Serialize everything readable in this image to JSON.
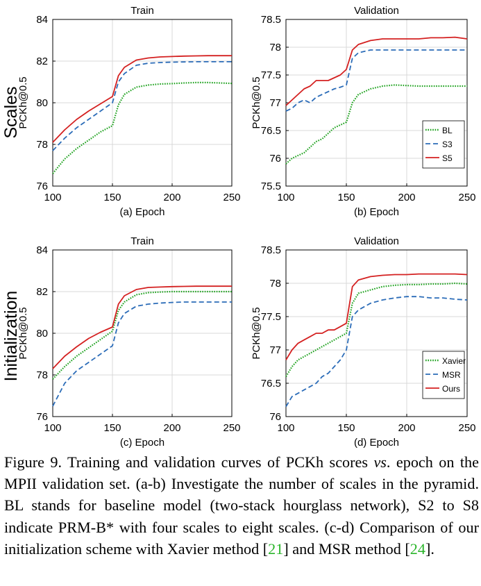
{
  "row_labels": [
    "Scales",
    "Initialization"
  ],
  "caption": {
    "figure_label": "Figure 9.",
    "text_a": " Training and validation curves of PCKh scores ",
    "vs": "vs",
    "text_b": ". epoch on the MPII validation set. (a-b) Investigate the number of scales in the pyramid. BL stands for baseline model (two-stack hourglass network), S2 to S8 indicate PRM-B* with four scales to eight scales. (c-d) Comparison of our initialization scheme with Xavier method [",
    "ref_1": "21",
    "text_c": "] and MSR method [",
    "ref_2": "24",
    "text_d": "]."
  },
  "colors": {
    "green": "#1fa21f",
    "blue": "#2b6cb8",
    "red": "#d42020",
    "ref_link": "#2ab52a"
  },
  "chart_data": [
    {
      "id": "a",
      "type": "line",
      "title": "Train",
      "xlabel": "(a) Epoch",
      "ylabel": "PCKh@0.5",
      "xlim": [
        100,
        250
      ],
      "ylim": [
        76,
        84
      ],
      "xticks": [
        100,
        150,
        200,
        250
      ],
      "yticks": [
        76,
        78,
        80,
        82,
        84
      ],
      "legend": null,
      "series": [
        {
          "name": "BL",
          "style": "dotted",
          "color": "#1fa21f",
          "x": [
            100,
            110,
            120,
            130,
            140,
            150,
            155,
            160,
            170,
            180,
            190,
            200,
            210,
            220,
            230,
            240,
            250
          ],
          "y": [
            76.6,
            77.3,
            77.8,
            78.2,
            78.6,
            78.9,
            79.9,
            80.4,
            80.75,
            80.85,
            80.9,
            80.92,
            80.95,
            80.97,
            80.97,
            80.95,
            80.93
          ]
        },
        {
          "name": "S3",
          "style": "dashed",
          "color": "#2b6cb8",
          "x": [
            100,
            110,
            120,
            130,
            140,
            150,
            155,
            160,
            170,
            180,
            190,
            200,
            210,
            220,
            230,
            240,
            250
          ],
          "y": [
            77.7,
            78.3,
            78.8,
            79.2,
            79.6,
            80.0,
            81.0,
            81.4,
            81.8,
            81.9,
            81.93,
            81.95,
            81.96,
            81.97,
            81.97,
            81.97,
            81.97
          ]
        },
        {
          "name": "S5",
          "style": "solid",
          "color": "#d42020",
          "x": [
            100,
            110,
            120,
            130,
            140,
            150,
            155,
            160,
            170,
            180,
            190,
            200,
            210,
            220,
            230,
            240,
            250
          ],
          "y": [
            78.1,
            78.7,
            79.2,
            79.6,
            79.95,
            80.3,
            81.3,
            81.7,
            82.05,
            82.15,
            82.2,
            82.22,
            82.24,
            82.25,
            82.26,
            82.26,
            82.26
          ]
        }
      ]
    },
    {
      "id": "b",
      "type": "line",
      "title": "Validation",
      "xlabel": "(b) Epoch",
      "ylabel": "PCKh@0.5",
      "xlim": [
        100,
        250
      ],
      "ylim": [
        75.5,
        78.5
      ],
      "xticks": [
        100,
        150,
        200,
        250
      ],
      "yticks": [
        75.5,
        76,
        76.5,
        77,
        77.5,
        78,
        78.5
      ],
      "legend": {
        "position": "lower-right",
        "entries": [
          "BL",
          "S3",
          "S5"
        ]
      },
      "series": [
        {
          "name": "BL",
          "style": "dotted",
          "color": "#1fa21f",
          "x": [
            100,
            105,
            110,
            115,
            120,
            125,
            130,
            135,
            140,
            145,
            150,
            155,
            160,
            170,
            180,
            190,
            200,
            210,
            220,
            230,
            240,
            250
          ],
          "y": [
            75.9,
            76.0,
            76.05,
            76.1,
            76.2,
            76.3,
            76.35,
            76.45,
            76.55,
            76.6,
            76.65,
            77.0,
            77.15,
            77.25,
            77.3,
            77.32,
            77.31,
            77.3,
            77.3,
            77.3,
            77.3,
            77.3
          ]
        },
        {
          "name": "S3",
          "style": "dashed",
          "color": "#2b6cb8",
          "x": [
            100,
            105,
            110,
            115,
            120,
            125,
            130,
            135,
            140,
            145,
            150,
            155,
            160,
            170,
            180,
            190,
            200,
            210,
            220,
            230,
            240,
            250
          ],
          "y": [
            76.85,
            76.9,
            77.0,
            77.05,
            77.0,
            77.1,
            77.15,
            77.2,
            77.25,
            77.28,
            77.32,
            77.8,
            77.9,
            77.95,
            77.95,
            77.95,
            77.95,
            77.95,
            77.95,
            77.95,
            77.95,
            77.95
          ]
        },
        {
          "name": "S5",
          "style": "solid",
          "color": "#d42020",
          "x": [
            100,
            105,
            110,
            115,
            120,
            125,
            130,
            135,
            140,
            145,
            150,
            155,
            160,
            170,
            180,
            190,
            200,
            210,
            220,
            230,
            240,
            250
          ],
          "y": [
            76.95,
            77.05,
            77.15,
            77.25,
            77.3,
            77.4,
            77.4,
            77.4,
            77.45,
            77.5,
            77.6,
            77.95,
            78.05,
            78.12,
            78.15,
            78.15,
            78.15,
            78.15,
            78.17,
            78.17,
            78.18,
            78.15
          ]
        }
      ]
    },
    {
      "id": "c",
      "type": "line",
      "title": "Train",
      "xlabel": "(c) Epoch",
      "ylabel": "PCKh@0.5",
      "xlim": [
        100,
        250
      ],
      "ylim": [
        76,
        84
      ],
      "xticks": [
        100,
        150,
        200,
        250
      ],
      "yticks": [
        76,
        78,
        80,
        82,
        84
      ],
      "legend": null,
      "series": [
        {
          "name": "Xavier",
          "style": "dotted",
          "color": "#1fa21f",
          "x": [
            100,
            110,
            120,
            130,
            140,
            150,
            155,
            160,
            170,
            180,
            190,
            200,
            210,
            220,
            230,
            240,
            250
          ],
          "y": [
            77.8,
            78.4,
            78.9,
            79.3,
            79.7,
            80.1,
            81.1,
            81.5,
            81.85,
            81.95,
            81.98,
            82.0,
            82.0,
            82.0,
            82.0,
            82.0,
            82.0
          ]
        },
        {
          "name": "MSR",
          "style": "dashed",
          "color": "#2b6cb8",
          "x": [
            100,
            110,
            120,
            130,
            140,
            150,
            155,
            160,
            170,
            180,
            190,
            200,
            210,
            220,
            230,
            240,
            250
          ],
          "y": [
            76.5,
            77.6,
            78.2,
            78.6,
            79.0,
            79.4,
            80.5,
            80.95,
            81.3,
            81.4,
            81.45,
            81.48,
            81.5,
            81.5,
            81.5,
            81.5,
            81.5
          ]
        },
        {
          "name": "Ours",
          "style": "solid",
          "color": "#d42020",
          "x": [
            100,
            110,
            120,
            130,
            140,
            150,
            155,
            160,
            170,
            180,
            190,
            200,
            210,
            220,
            230,
            240,
            250
          ],
          "y": [
            78.3,
            78.9,
            79.35,
            79.75,
            80.05,
            80.3,
            81.4,
            81.8,
            82.1,
            82.2,
            82.22,
            82.24,
            82.25,
            82.26,
            82.26,
            82.26,
            82.26
          ]
        }
      ]
    },
    {
      "id": "d",
      "type": "line",
      "title": "Validation",
      "xlabel": "(d) Epoch",
      "ylabel": "PCKh@0.5",
      "xlim": [
        100,
        250
      ],
      "ylim": [
        76,
        78.5
      ],
      "xticks": [
        100,
        150,
        200,
        250
      ],
      "yticks": [
        76,
        76.5,
        77,
        77.5,
        78,
        78.5
      ],
      "legend": {
        "position": "lower-right",
        "entries": [
          "Xavier",
          "MSR",
          "Ours"
        ]
      },
      "series": [
        {
          "name": "Xavier",
          "style": "dotted",
          "color": "#1fa21f",
          "x": [
            100,
            105,
            110,
            115,
            120,
            125,
            130,
            135,
            140,
            145,
            150,
            155,
            160,
            170,
            180,
            190,
            200,
            210,
            220,
            230,
            240,
            250
          ],
          "y": [
            76.6,
            76.75,
            76.85,
            76.9,
            76.95,
            77.0,
            77.05,
            77.1,
            77.15,
            77.2,
            77.25,
            77.7,
            77.85,
            77.9,
            77.95,
            77.97,
            77.98,
            77.98,
            77.99,
            77.99,
            78.0,
            77.99
          ]
        },
        {
          "name": "MSR",
          "style": "dashed",
          "color": "#2b6cb8",
          "x": [
            100,
            105,
            110,
            115,
            120,
            125,
            130,
            135,
            140,
            145,
            150,
            155,
            160,
            170,
            180,
            190,
            200,
            210,
            220,
            230,
            240,
            250
          ],
          "y": [
            76.15,
            76.3,
            76.35,
            76.4,
            76.45,
            76.5,
            76.6,
            76.65,
            76.75,
            76.85,
            77.0,
            77.5,
            77.6,
            77.7,
            77.75,
            77.78,
            77.8,
            77.8,
            77.78,
            77.78,
            77.76,
            77.75
          ]
        },
        {
          "name": "Ours",
          "style": "solid",
          "color": "#d42020",
          "x": [
            100,
            105,
            110,
            115,
            120,
            125,
            130,
            135,
            140,
            145,
            150,
            155,
            160,
            170,
            180,
            190,
            200,
            210,
            220,
            230,
            240,
            250
          ],
          "y": [
            76.85,
            77.0,
            77.1,
            77.15,
            77.2,
            77.25,
            77.25,
            77.3,
            77.3,
            77.35,
            77.4,
            77.95,
            78.05,
            78.1,
            78.12,
            78.13,
            78.13,
            78.14,
            78.14,
            78.14,
            78.14,
            78.13
          ]
        }
      ]
    }
  ]
}
